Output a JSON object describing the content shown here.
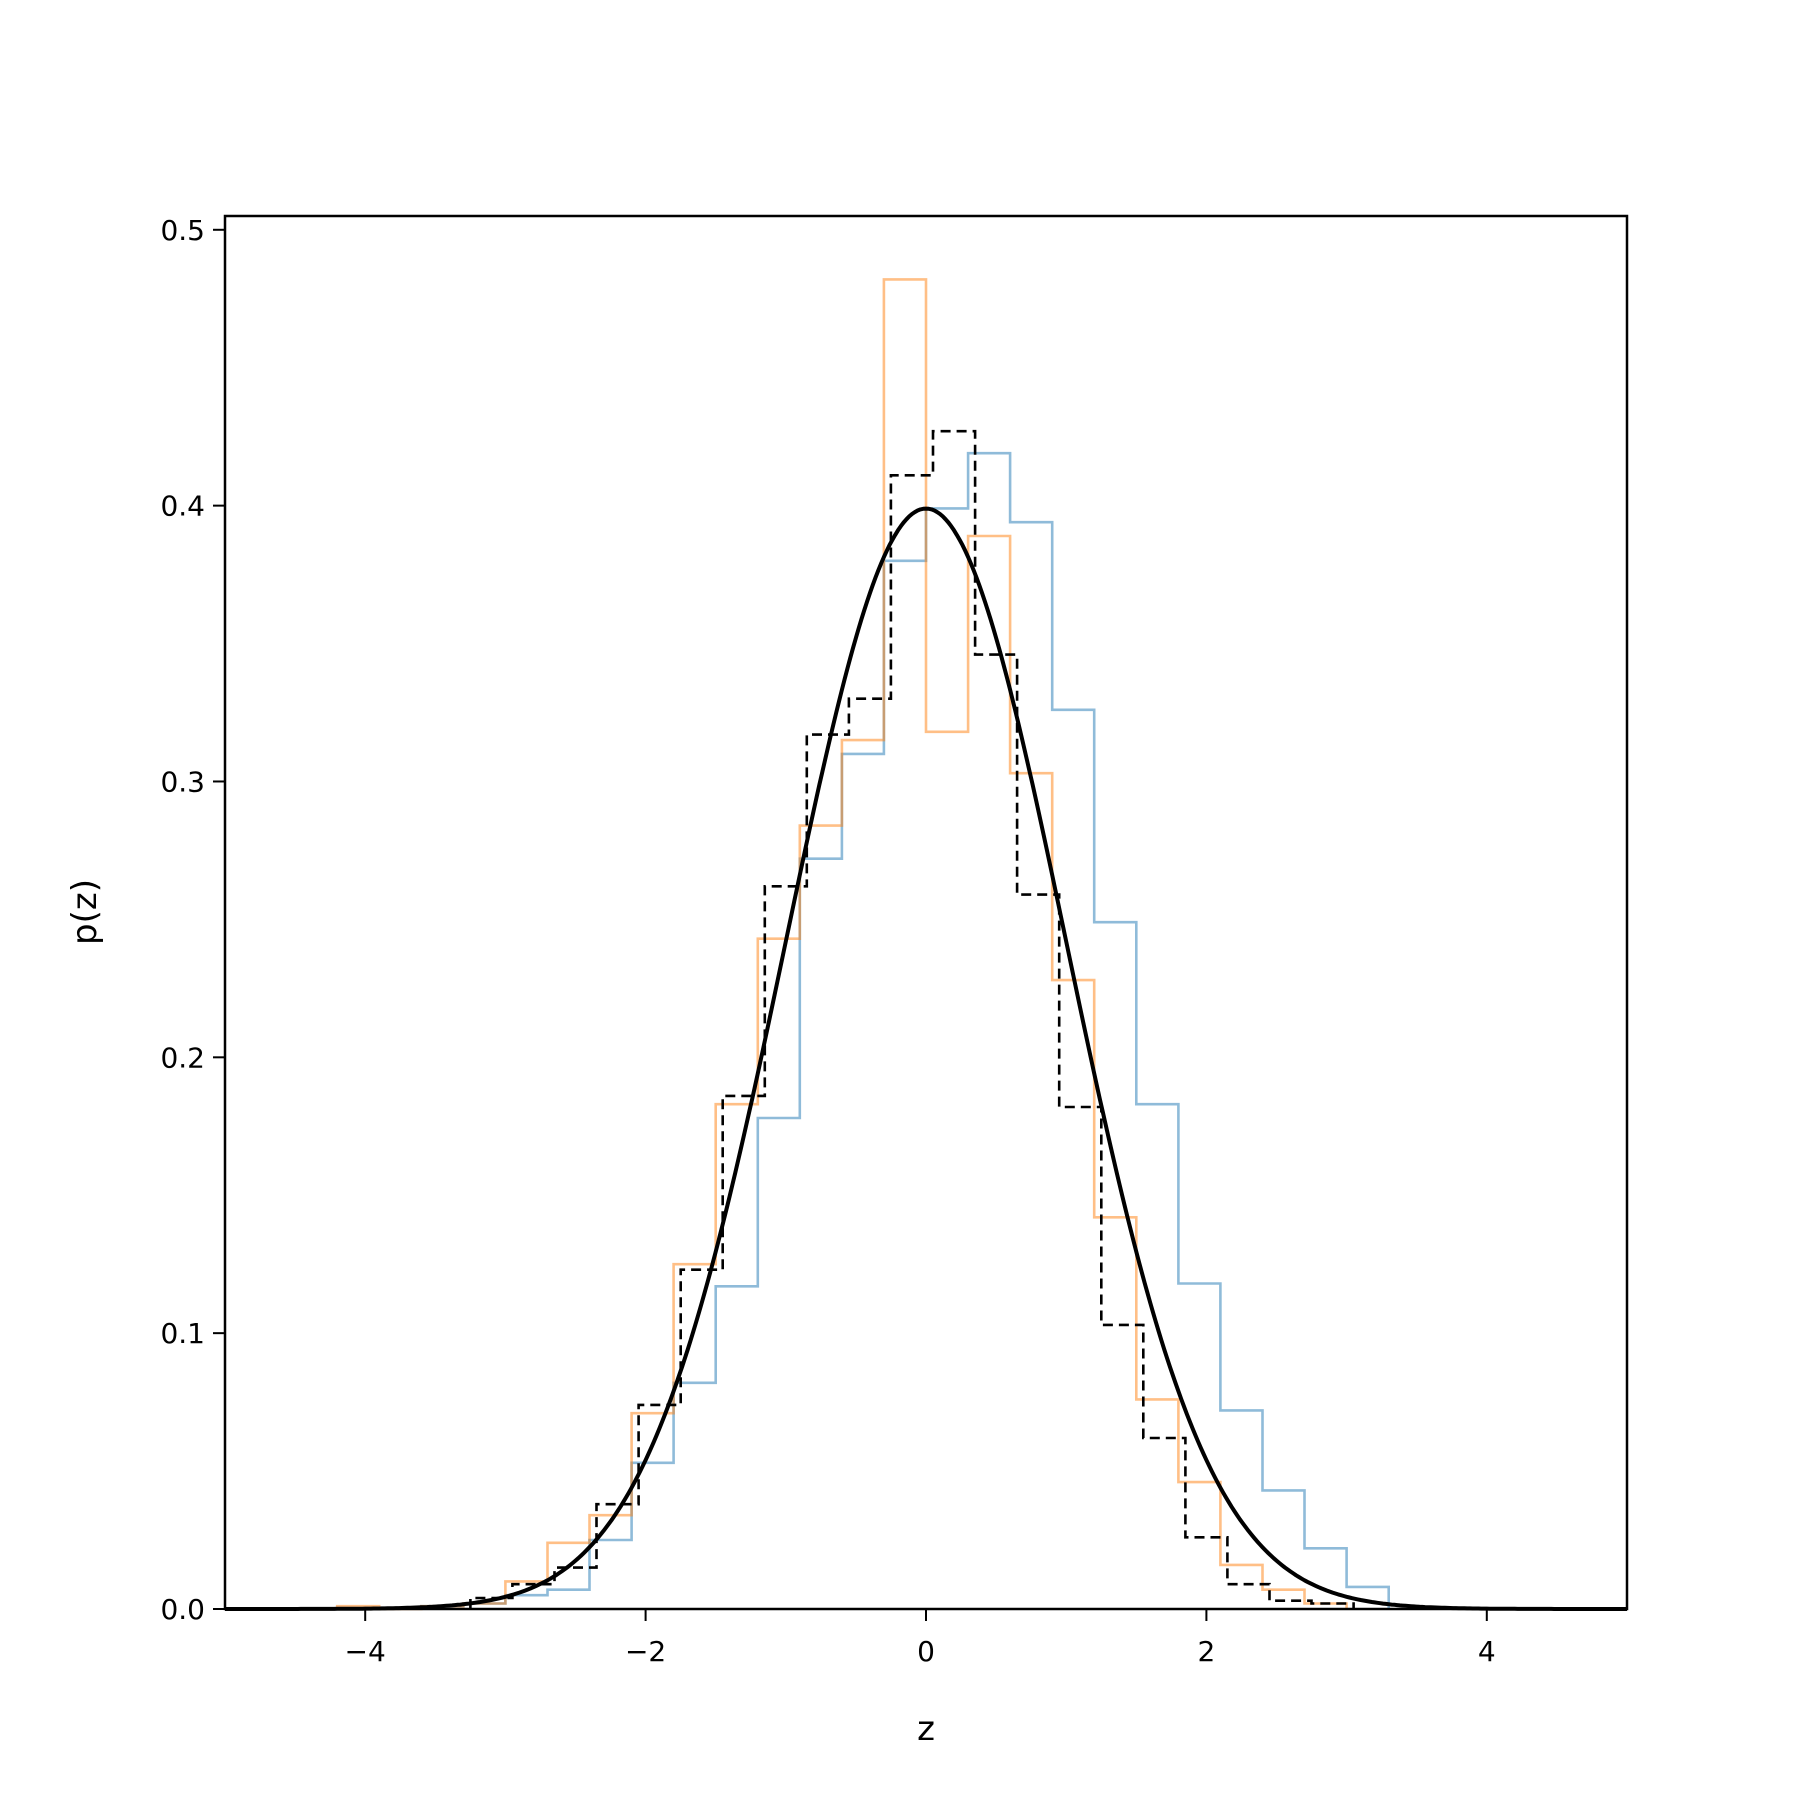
{
  "chart_data": {
    "type": "histogram",
    "title": "",
    "xlabel": "z",
    "ylabel": "p(z)",
    "xlim": [
      -5,
      5
    ],
    "ylim": [
      0,
      0.505
    ],
    "xticks": [
      -4,
      -2,
      0,
      2,
      4
    ],
    "xtick_labels": [
      "−4",
      "−2",
      "0",
      "2",
      "4"
    ],
    "yticks": [
      0.0,
      0.1,
      0.2,
      0.3,
      0.4,
      0.5
    ],
    "ytick_labels": [
      "0.0",
      "0.1",
      "0.2",
      "0.3",
      "0.4",
      "0.5"
    ],
    "grid": false,
    "legend": false,
    "series": [
      {
        "style": "step",
        "color": "#1f77b4",
        "opacity": 0.5,
        "dash": "solid",
        "edges": [
          -3.6,
          -3.3,
          -3.0,
          -2.7,
          -2.4,
          -2.1,
          -1.8,
          -1.5,
          -1.2,
          -0.9,
          -0.6,
          -0.3,
          0.0,
          0.3,
          0.6,
          0.9,
          1.2,
          1.5,
          1.8,
          2.1,
          2.4,
          2.7,
          3.0,
          3.3
        ],
        "values": [
          0.001,
          0.002,
          0.005,
          0.007,
          0.025,
          0.053,
          0.082,
          0.117,
          0.178,
          0.272,
          0.31,
          0.38,
          0.399,
          0.419,
          0.394,
          0.326,
          0.249,
          0.183,
          0.118,
          0.072,
          0.043,
          0.022,
          0.008
        ]
      },
      {
        "style": "step",
        "color": "#ff7f0e",
        "opacity": 0.5,
        "dash": "solid",
        "edges": [
          -4.2,
          -3.9,
          -3.6,
          -3.3,
          -3.0,
          -2.7,
          -2.4,
          -2.1,
          -1.8,
          -1.5,
          -1.2,
          -0.9,
          -0.6,
          -0.3,
          0.0,
          0.3,
          0.6,
          0.9,
          1.2,
          1.5,
          1.8,
          2.1,
          2.4,
          2.7,
          3.0
        ],
        "values": [
          0.001,
          0.0,
          0.001,
          0.002,
          0.01,
          0.024,
          0.034,
          0.071,
          0.125,
          0.183,
          0.243,
          0.284,
          0.315,
          0.482,
          0.318,
          0.389,
          0.303,
          0.228,
          0.142,
          0.076,
          0.046,
          0.016,
          0.007,
          0.002
        ]
      },
      {
        "style": "step",
        "color": "#000000",
        "opacity": 1,
        "dash": "dashed",
        "edges": [
          -3.25,
          -2.95,
          -2.65,
          -2.35,
          -2.05,
          -1.75,
          -1.45,
          -1.15,
          -0.85,
          -0.55,
          -0.25,
          0.05,
          0.35,
          0.65,
          0.95,
          1.25,
          1.55,
          1.85,
          2.15,
          2.45,
          2.75,
          3.05
        ],
        "values": [
          0.004,
          0.009,
          0.015,
          0.038,
          0.074,
          0.123,
          0.186,
          0.262,
          0.317,
          0.33,
          0.411,
          0.427,
          0.346,
          0.259,
          0.182,
          0.103,
          0.062,
          0.026,
          0.009,
          0.003,
          0.002
        ]
      },
      {
        "style": "line",
        "color": "#000000",
        "dash": "solid",
        "function": "standard-normal-pdf",
        "x": [
          -5.0,
          -4.5,
          -4.0,
          -3.5,
          -3.0,
          -2.5,
          -2.0,
          -1.5,
          -1.0,
          -0.5,
          0.0,
          0.5,
          1.0,
          1.5,
          2.0,
          2.5,
          3.0,
          3.5,
          4.0,
          4.5,
          5.0
        ],
        "y": [
          0.0,
          0.0,
          0.0001,
          0.0009,
          0.0044,
          0.0175,
          0.054,
          0.1295,
          0.242,
          0.3521,
          0.3989,
          0.3521,
          0.242,
          0.1295,
          0.054,
          0.0175,
          0.0044,
          0.0009,
          0.0001,
          0.0,
          0.0
        ]
      }
    ]
  }
}
